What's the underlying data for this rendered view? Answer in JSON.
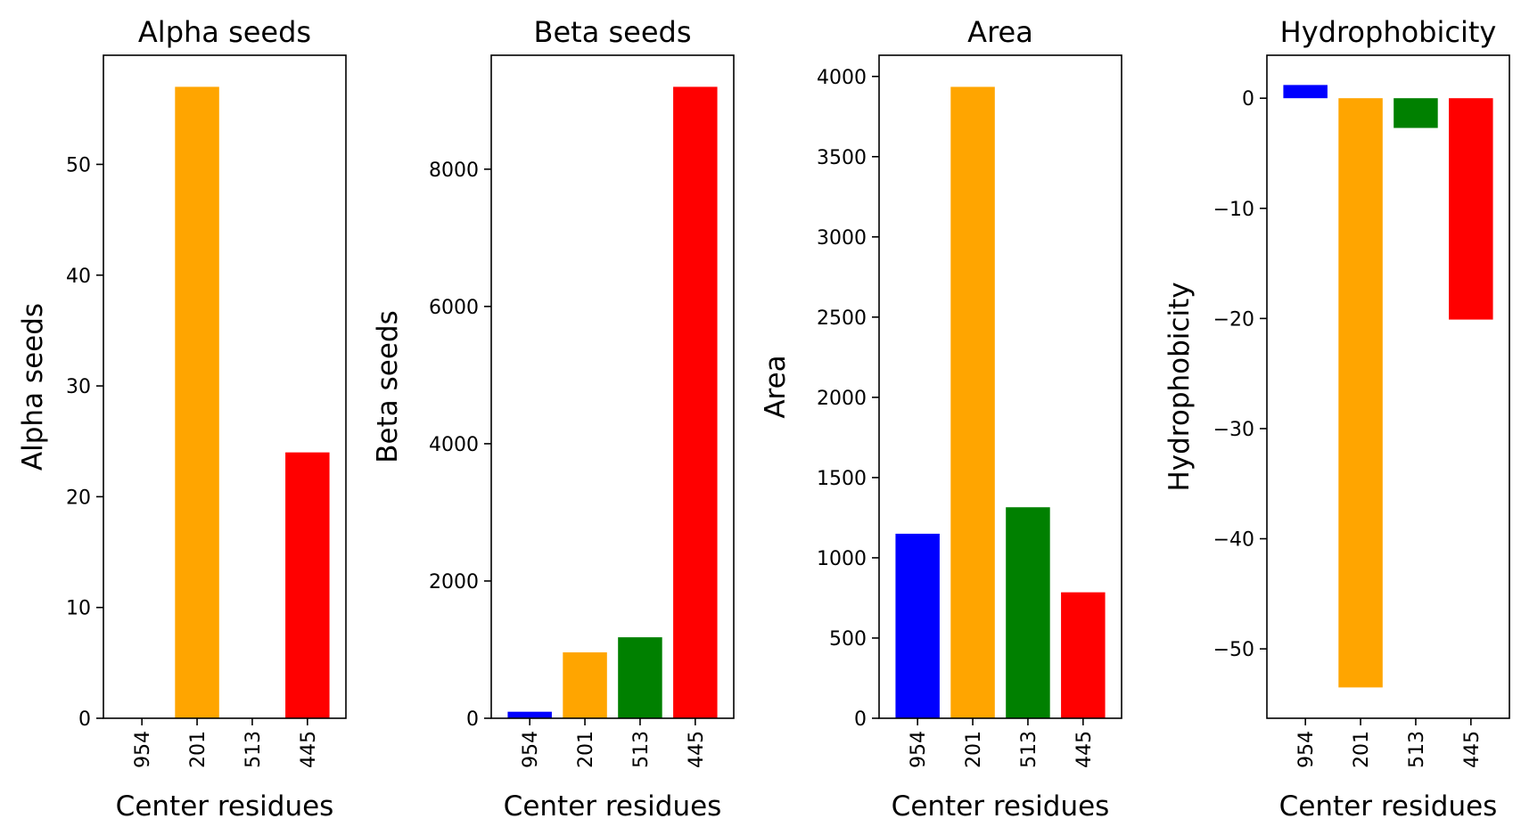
{
  "chart_data": [
    {
      "type": "bar",
      "title": "Alpha seeds",
      "xlabel": "Center residues",
      "ylabel": "Alpha seeds",
      "categories": [
        "954",
        "201",
        "513",
        "445"
      ],
      "values": [
        0,
        57,
        0,
        24
      ],
      "colors": [
        "#0000ff",
        "#ffa500",
        "#008000",
        "#ff0000"
      ],
      "ylim": [
        0,
        59.85
      ],
      "yticks": [
        0,
        10,
        20,
        30,
        40,
        50
      ],
      "ytick_labels": [
        "0",
        "10",
        "20",
        "30",
        "40",
        "50"
      ],
      "grid": false,
      "legend": "none"
    },
    {
      "type": "bar",
      "title": "Beta seeds",
      "xlabel": "Center residues",
      "ylabel": "Beta seeds",
      "categories": [
        "954",
        "201",
        "513",
        "445"
      ],
      "values": [
        95,
        960,
        1180,
        9200
      ],
      "colors": [
        "#0000ff",
        "#ffa500",
        "#008000",
        "#ff0000"
      ],
      "ylim": [
        0,
        9660
      ],
      "yticks": [
        0,
        2000,
        4000,
        6000,
        8000
      ],
      "ytick_labels": [
        "0",
        "2000",
        "4000",
        "6000",
        "8000"
      ],
      "grid": false,
      "legend": "none"
    },
    {
      "type": "bar",
      "title": "Area",
      "xlabel": "Center residues",
      "ylabel": "Area",
      "categories": [
        "954",
        "201",
        "513",
        "445"
      ],
      "values": [
        1150,
        3935,
        1315,
        785
      ],
      "colors": [
        "#0000ff",
        "#ffa500",
        "#008000",
        "#ff0000"
      ],
      "ylim": [
        0,
        4132
      ],
      "yticks": [
        0,
        500,
        1000,
        1500,
        2000,
        2500,
        3000,
        3500,
        4000
      ],
      "ytick_labels": [
        "0",
        "500",
        "1000",
        "1500",
        "2000",
        "2500",
        "3000",
        "3500",
        "4000"
      ],
      "grid": false,
      "legend": "none"
    },
    {
      "type": "bar",
      "title": "Hydrophobicity",
      "xlabel": "Center residues",
      "ylabel": "Hydrophobicity",
      "categories": [
        "954",
        "201",
        "513",
        "445"
      ],
      "values": [
        1.2,
        -53.5,
        -2.7,
        -20.1
      ],
      "colors": [
        "#0000ff",
        "#ffa500",
        "#008000",
        "#ff0000"
      ],
      "ylim": [
        -56.3,
        3.9
      ],
      "yticks": [
        0,
        -10,
        -20,
        -30,
        -40,
        -50
      ],
      "ytick_labels": [
        "0",
        "−10",
        "−20",
        "−30",
        "−40",
        "−50"
      ],
      "grid": false,
      "legend": "none"
    }
  ]
}
